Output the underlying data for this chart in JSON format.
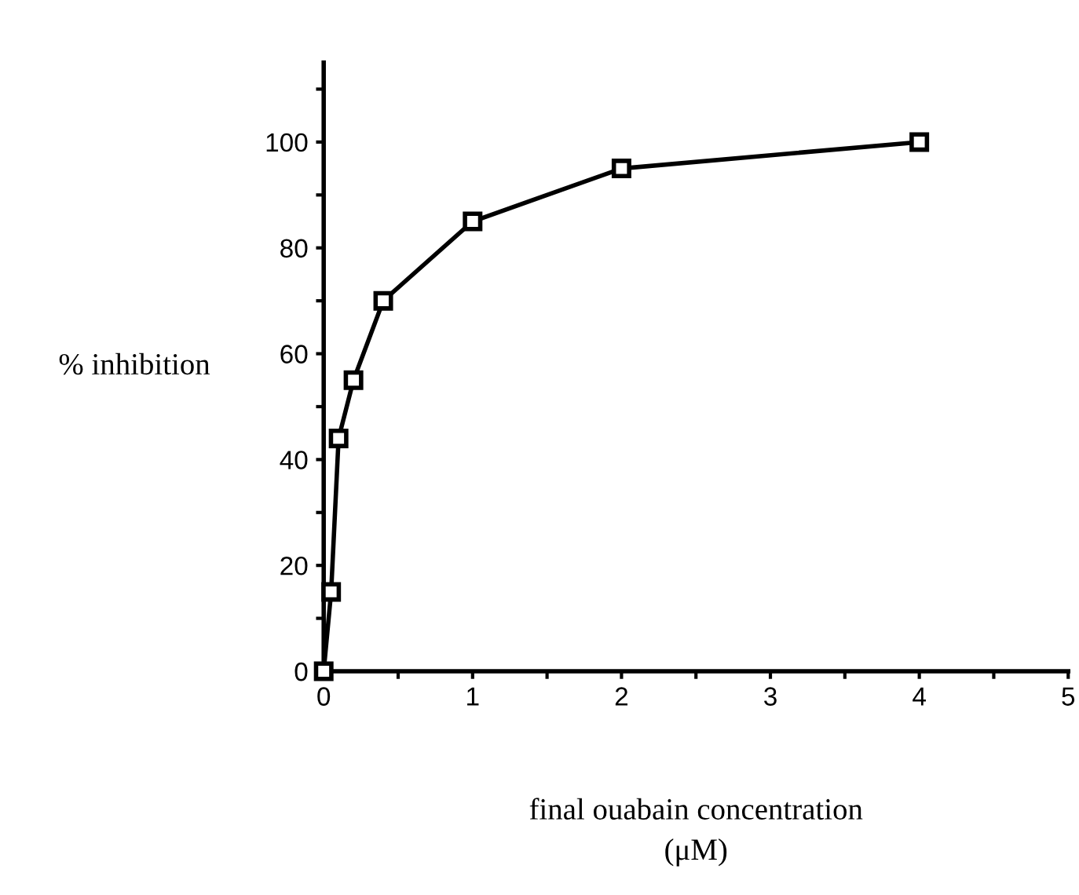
{
  "chart_data": {
    "type": "line",
    "xlabel": "final ouabain concentration\n(μM)",
    "ylabel": "% inhibition",
    "x": [
      0,
      0.05,
      0.1,
      0.2,
      0.4,
      1,
      2,
      4
    ],
    "series": [
      {
        "color": "#000000",
        "values": [
          0,
          15,
          44,
          55,
          70,
          85,
          95,
          100
        ]
      }
    ],
    "marker": "square",
    "line_style": "solid",
    "grid": false,
    "legend": false,
    "xlim": [
      0,
      5
    ],
    "ylim": [
      0,
      115
    ],
    "xticks": [
      0,
      {
        "value": 0.5,
        "label": null
      },
      1,
      {
        "value": 1.5,
        "label": null
      },
      2,
      {
        "value": 2.5,
        "label": null
      },
      3,
      {
        "value": 3.5,
        "label": null
      },
      4,
      {
        "value": 4.5,
        "label": null
      },
      5
    ],
    "yticks": [
      0,
      {
        "value": 10,
        "label": null
      },
      20,
      {
        "value": 30,
        "label": null
      },
      40,
      {
        "value": 50,
        "label": null
      },
      60,
      {
        "value": 70,
        "label": null
      },
      80,
      {
        "value": 90,
        "label": null
      },
      100,
      {
        "value": 110,
        "label": null
      }
    ]
  }
}
